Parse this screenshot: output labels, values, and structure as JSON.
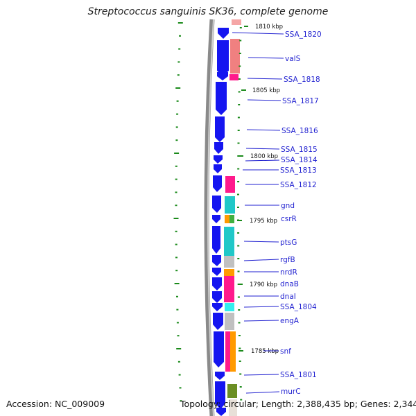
{
  "title": "Streptococcus sanguinis SK36, complete genome",
  "footer": {
    "accession": "Accession: NC_009009",
    "topology": "Topology: circular; Length: 2,388,435 bp; Genes: 2,344"
  },
  "colors": {
    "gene_arrow": "#1515f0",
    "backbone": "#8a8a8a",
    "tick": "#1a8a1a",
    "label": "#1f1fd0",
    "cog_pink": "#ff1a8c",
    "cog_salmon": "#f08080",
    "cog_cyan": "#20c8c8",
    "cog_gray": "#c0c0c0",
    "cog_orange": "#ff9a00",
    "cog_green": "#40b040",
    "cog_olive": "#6b8e23",
    "cog_lightcyan": "#33eeee"
  },
  "kbp_marks": [
    "1810 kbp",
    "1805 kbp",
    "1800 kbp",
    "1795 kbp",
    "1790 kbp",
    "1785 kbp"
  ],
  "genes": [
    "SSA_1820",
    "valS",
    "SSA_1818",
    "SSA_1817",
    "SSA_1816",
    "SSA_1815",
    "SSA_1814",
    "SSA_1813",
    "SSA_1812",
    "gnd",
    "csrR",
    "ptsG",
    "rgfB",
    "nrdR",
    "dnaB",
    "dnaI",
    "SSA_1804",
    "engA",
    "snf",
    "SSA_1801",
    "murC"
  ]
}
